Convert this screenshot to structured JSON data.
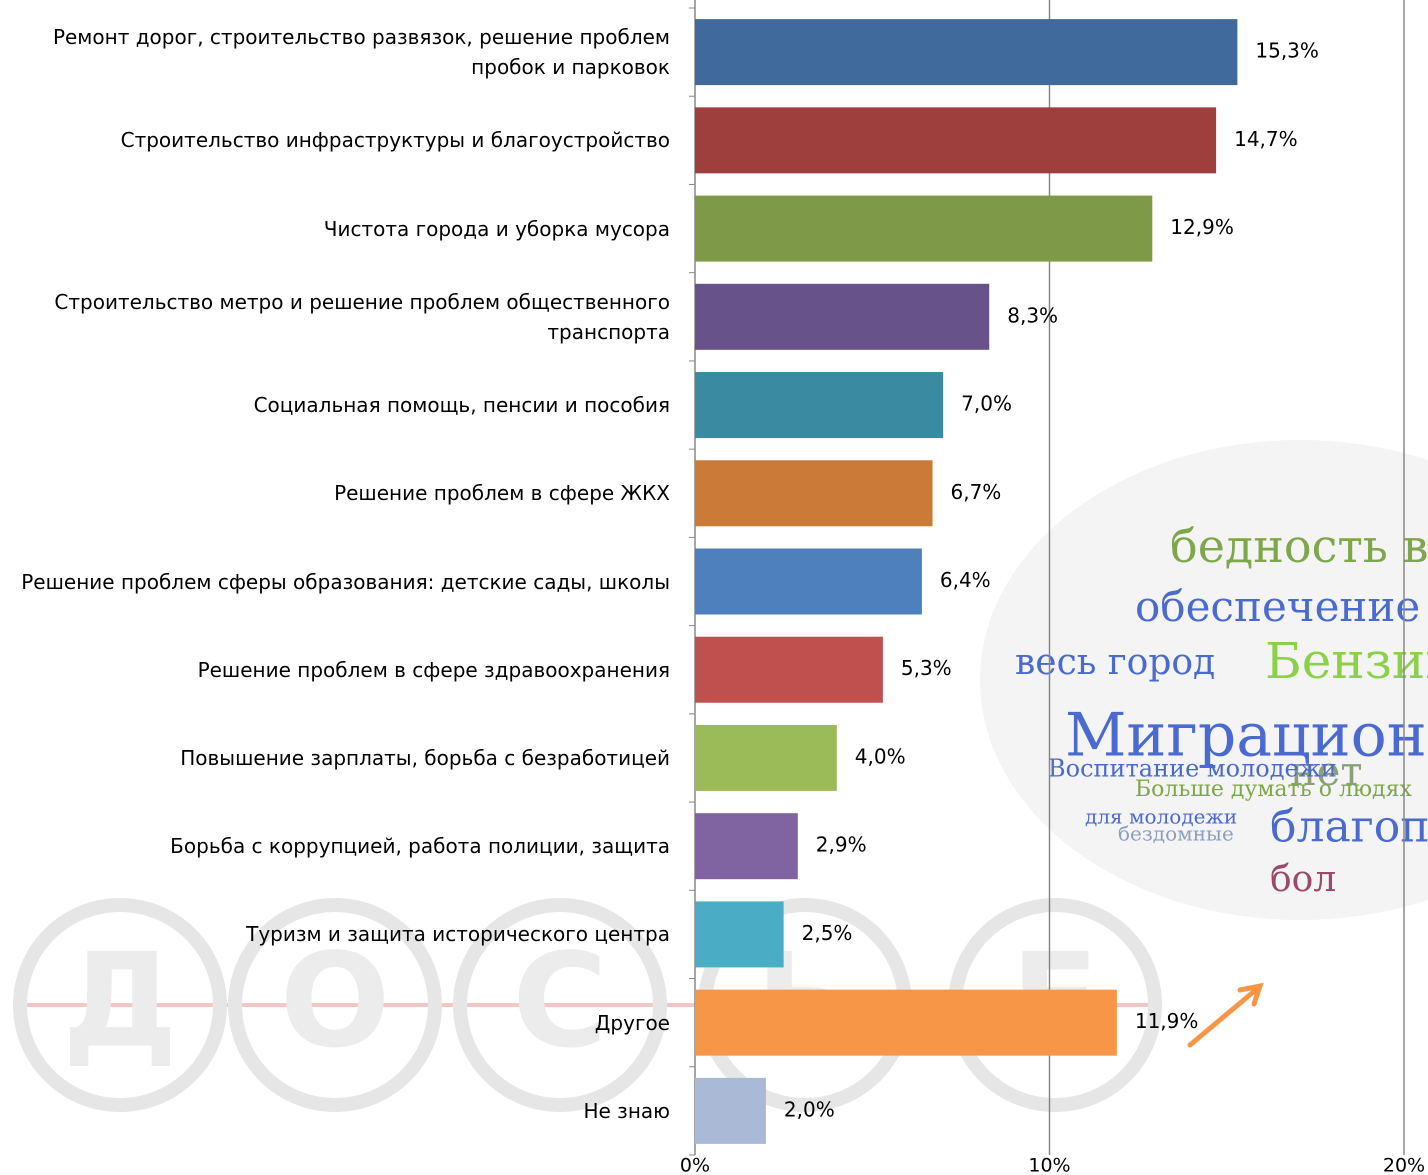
{
  "chart_data": {
    "type": "barh",
    "categories": [
      "Ремонт дорог, строительство развязок, решение проблем пробок и парковок",
      "Строительство инфраструктуры и благоустройство",
      "Чистота города и уборка мусора",
      "Строительство метро и решение проблем общественного транспорта",
      "Социальная помощь, пенсии и пособия",
      "Решение проблем в сфере ЖКХ",
      "Решение проблем сферы образования: детские сады, школы",
      "Решение проблем в сфере здравоохранения",
      "Повышение зарплаты, борьба с безработицей",
      "Борьба с коррупцией, работа полиции, защита",
      "Туризм и защита исторического центра",
      "Другое",
      "Не знаю"
    ],
    "values": [
      15.3,
      14.7,
      12.9,
      8.3,
      7.0,
      6.7,
      6.4,
      5.3,
      4.0,
      2.9,
      2.5,
      11.9,
      2.0
    ],
    "value_labels": [
      "15,3%",
      "14,7%",
      "12,9%",
      "8,3%",
      "7,0%",
      "6,7%",
      "6,4%",
      "5,3%",
      "4,0%",
      "2,9%",
      "2,5%",
      "11,9%",
      "2,0%"
    ],
    "colors": [
      "#406a9c",
      "#9e3f3d",
      "#7e9a48",
      "#67528a",
      "#3a8ba1",
      "#cc7a37",
      "#4d80bd",
      "#c0504d",
      "#9bbb59",
      "#8064a2",
      "#4bacc6",
      "#f79646",
      "#a9b9d6"
    ],
    "xlim": [
      0,
      20
    ],
    "xticks": [
      {
        "value": 0,
        "label": "0%"
      },
      {
        "value": 10,
        "label": "10%"
      },
      {
        "value": 20,
        "label": "20%"
      }
    ],
    "grid": true,
    "annotations": [
      "бедность в",
      "обеспечение",
      "весь город",
      "Бензин",
      "Миграционн",
      "нет",
      "благоприятные ус",
      "Больше думать о людях",
      "Воспитание молодежи",
      "для молодежи",
      "бездомные",
      "бол"
    ],
    "watermark": [
      "Д",
      "О",
      "С",
      "Ь",
      "Е"
    ]
  }
}
